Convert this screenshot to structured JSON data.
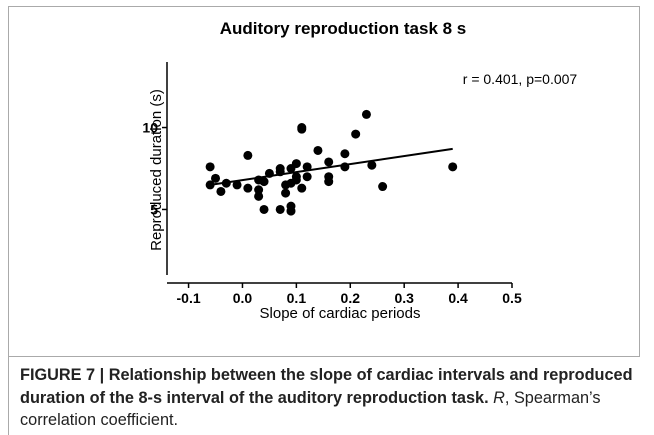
{
  "chart_data": {
    "type": "scatter",
    "title": "Auditory reproduction task 8 s",
    "annotation": "r = 0.401, p=0.007",
    "xlabel": "Slope of cardiac periods",
    "ylabel": "Reproduced duration (s)",
    "xlim": [
      -0.14,
      0.5
    ],
    "ylim": [
      1,
      14
    ],
    "xticks": [
      -0.1,
      {
        "value": 0,
        "label": "0.0"
      },
      0.1,
      0.2,
      0.3,
      0.4,
      0.5
    ],
    "yticks": [
      5,
      10
    ],
    "color": "#000000",
    "x": [
      -0.06,
      -0.06,
      -0.05,
      -0.04,
      -0.03,
      -0.01,
      0.01,
      0.01,
      0.03,
      0.03,
      0.03,
      0.04,
      0.04,
      0.05,
      0.07,
      0.07,
      0.07,
      0.08,
      0.08,
      0.09,
      0.09,
      0.09,
      0.09,
      0.1,
      0.1,
      0.11,
      0.11,
      0.11,
      0.12,
      0.12,
      0.14,
      0.16,
      0.16,
      0.16,
      0.19,
      0.19,
      0.21,
      0.23,
      0.24,
      0.26,
      0.39,
      0.1
    ],
    "values": [
      7.6,
      6.5,
      6.9,
      6.1,
      6.6,
      6.5,
      8.3,
      6.3,
      6.8,
      6.2,
      5.8,
      6.7,
      5.0,
      7.2,
      7.5,
      7.3,
      5.0,
      6.5,
      6.0,
      6.6,
      5.2,
      4.9,
      7.5,
      7.8,
      7.0,
      10.0,
      9.9,
      6.3,
      7.6,
      7.0,
      8.6,
      7.9,
      7.0,
      6.7,
      8.4,
      7.6,
      9.6,
      10.8,
      7.7,
      6.4,
      7.6,
      6.8
    ],
    "trend_line": {
      "x": [
        -0.06,
        0.39
      ],
      "y": [
        6.5,
        8.7
      ]
    }
  },
  "caption": {
    "label": "FIGURE 7 | Relationship between the slope of cardiac intervals and reproduced duration of the 8-s interval of the auditory reproduction task.",
    "italic": "R",
    "text": ", Spearman’s correlation coefficient."
  }
}
